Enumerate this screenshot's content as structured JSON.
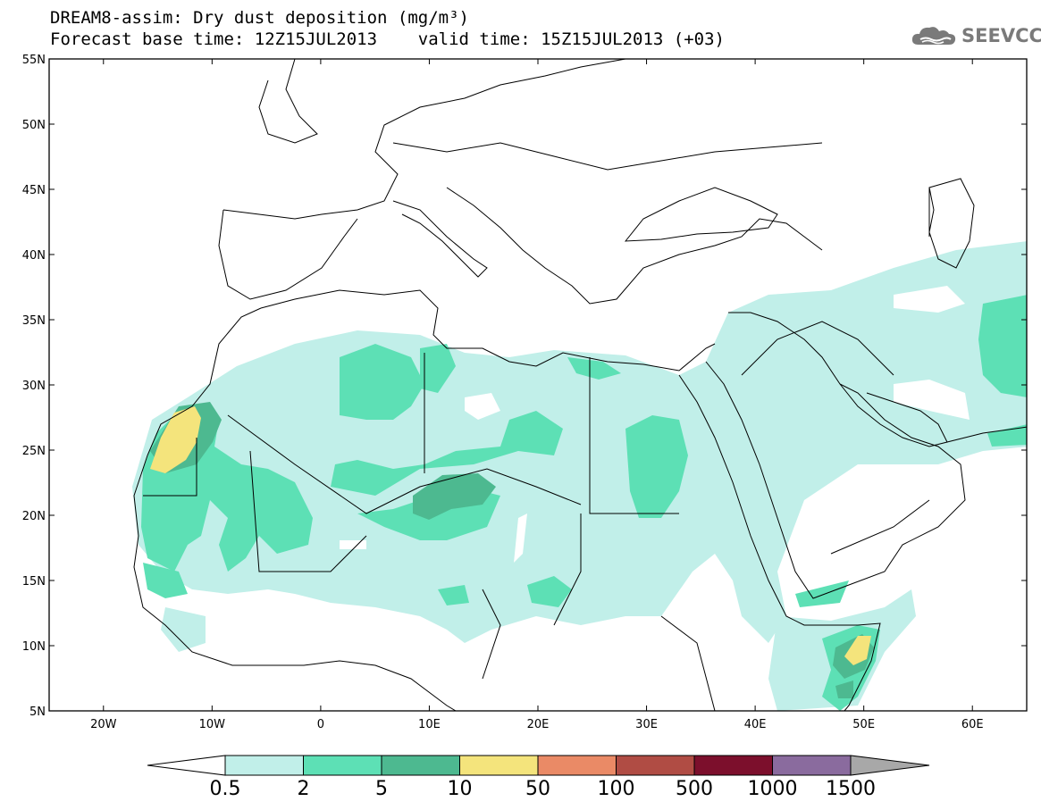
{
  "title": {
    "line1": "DREAM8-assim: Dry dust deposition (mg/m³)",
    "line2": "Forecast base time: 12Z15JUL2013    valid time: 15Z15JUL2013 (+03)"
  },
  "logo": {
    "text": "SEEVCCC",
    "icon": "cloud-logo-icon",
    "color": "#7a7a7a"
  },
  "map": {
    "lon_range": [
      -25,
      65
    ],
    "lat_range": [
      5,
      55
    ],
    "x_ticks": [
      {
        "value": -20,
        "label": "20W"
      },
      {
        "value": -10,
        "label": "10W"
      },
      {
        "value": 0,
        "label": "0"
      },
      {
        "value": 10,
        "label": "10E"
      },
      {
        "value": 20,
        "label": "20E"
      },
      {
        "value": 30,
        "label": "30E"
      },
      {
        "value": 40,
        "label": "40E"
      },
      {
        "value": 50,
        "label": "50E"
      },
      {
        "value": 60,
        "label": "60E"
      }
    ],
    "y_ticks": [
      {
        "value": 55,
        "label": "55N"
      },
      {
        "value": 50,
        "label": "50N"
      },
      {
        "value": 45,
        "label": "45N"
      },
      {
        "value": 40,
        "label": "40N"
      },
      {
        "value": 35,
        "label": "35N"
      },
      {
        "value": 30,
        "label": "30N"
      },
      {
        "value": 25,
        "label": "25N"
      },
      {
        "value": 20,
        "label": "20N"
      },
      {
        "value": 15,
        "label": "15N"
      },
      {
        "value": 10,
        "label": "10N"
      },
      {
        "value": 5,
        "label": "5N"
      }
    ]
  },
  "legend": {
    "levels": [
      "0.5",
      "2",
      "5",
      "10",
      "50",
      "100",
      "500",
      "1000",
      "1500"
    ],
    "colors": [
      "#c1efe9",
      "#5de0b5",
      "#4db990",
      "#f4e47c",
      "#ea8a66",
      "#b04c44",
      "#7c0f2c",
      "#8a6b9e"
    ],
    "under_color": "#ffffff",
    "over_color": "#a8a8a8"
  }
}
